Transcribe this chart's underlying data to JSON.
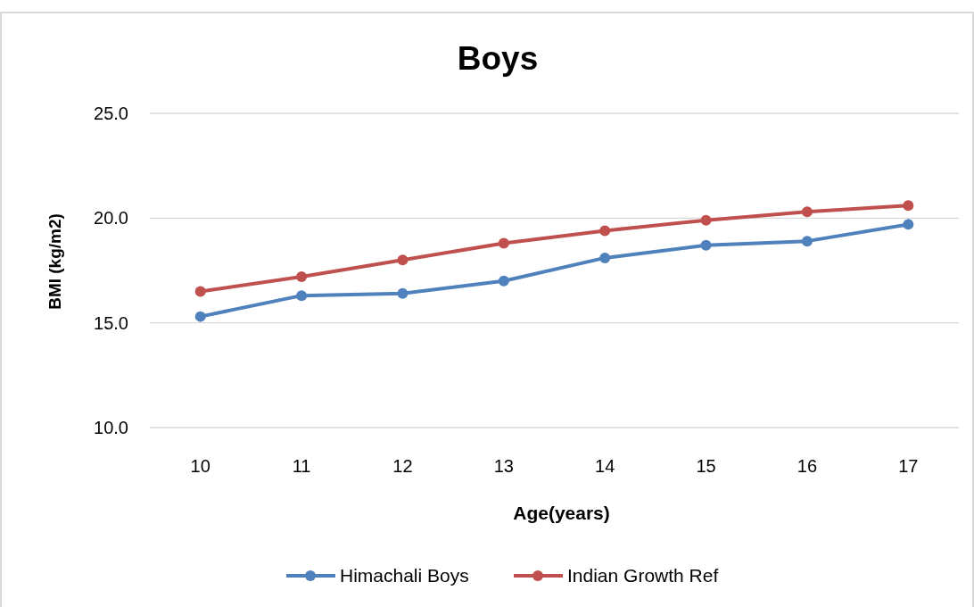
{
  "chart_data": {
    "type": "line",
    "title": "Boys",
    "xlabel": "Age(years)",
    "ylabel": "BMI (kg/m2)",
    "categories": [
      "10",
      "11",
      "12",
      "13",
      "14",
      "15",
      "16",
      "17"
    ],
    "series": [
      {
        "name": "Himachali Boys",
        "color": "#4f81bd",
        "values": [
          15.3,
          16.3,
          16.4,
          17.0,
          18.1,
          18.7,
          18.9,
          19.7
        ]
      },
      {
        "name": "Indian Growth Ref",
        "color": "#c0504d",
        "values": [
          16.5,
          17.2,
          18.0,
          18.8,
          19.4,
          19.9,
          20.3,
          20.6
        ]
      }
    ],
    "ylim": [
      10,
      25
    ],
    "yticks": [
      {
        "value": 10,
        "label": "10.0"
      },
      {
        "value": 15,
        "label": "15.0"
      },
      {
        "value": 20,
        "label": "20.0"
      },
      {
        "value": 25,
        "label": "25.0"
      }
    ],
    "grid": "y",
    "legend": "bottom",
    "marker": "circle",
    "line_style": "solid"
  }
}
